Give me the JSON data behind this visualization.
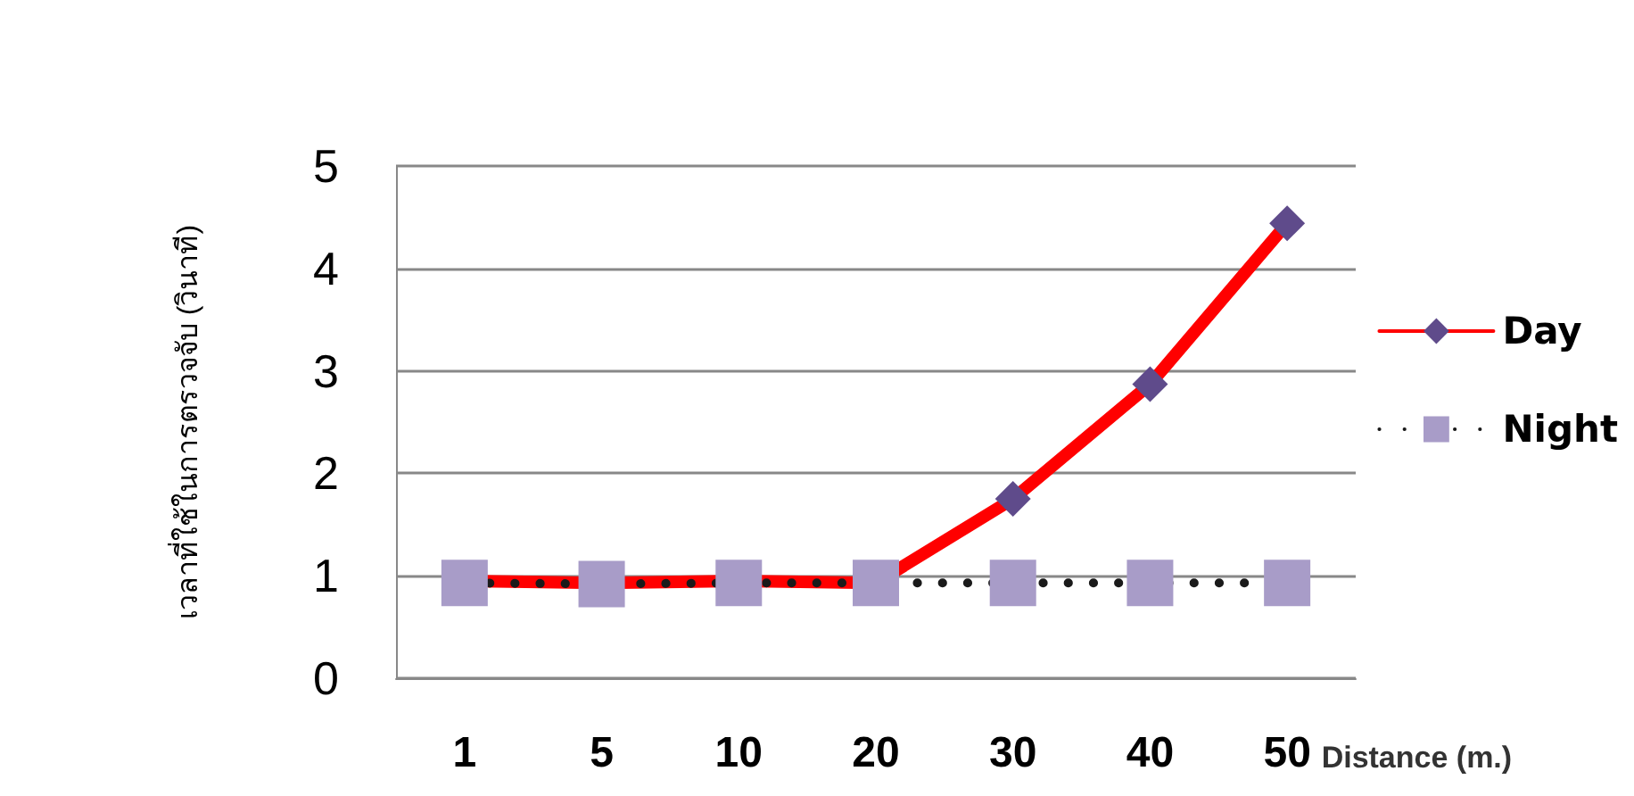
{
  "chart_data": {
    "type": "line",
    "xlabel": "Distance (m.)",
    "ylabel": "เวลาที่ใช้ในการตรวจจับ (วินาที)",
    "categories": [
      "1",
      "5",
      "10",
      "20",
      "30",
      "40",
      "50"
    ],
    "series": [
      {
        "name": "Day",
        "color": "#ff0000",
        "marker": "diamond",
        "line_style": "solid",
        "values": [
          0.95,
          0.93,
          0.95,
          0.93,
          1.75,
          2.87,
          4.44
        ]
      },
      {
        "name": "Night",
        "color": "#1a1a1a",
        "marker": "square",
        "line_style": "dotted",
        "values": [
          0.93,
          0.92,
          0.93,
          0.93,
          0.93,
          0.93,
          0.93
        ]
      }
    ],
    "ylim": [
      0,
      5
    ],
    "yticks": [
      0,
      1,
      2,
      3,
      4,
      5
    ],
    "grid": "y",
    "legend": "right"
  }
}
